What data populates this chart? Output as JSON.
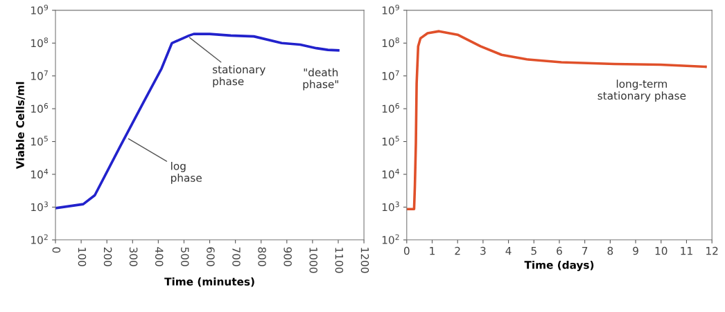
{
  "chart_data": [
    {
      "type": "line",
      "xlabel": "Time (minutes)",
      "ylabel": "Viable Cells/ml",
      "log": "y",
      "marker": "none",
      "line_style": "solid",
      "xlim": [
        0,
        1200
      ],
      "xticks": [
        0,
        100,
        200,
        300,
        400,
        500,
        600,
        700,
        800,
        900,
        1000,
        1100,
        1200
      ],
      "ylim": [
        100,
        1000000000
      ],
      "yticks": [
        {
          "value": 100,
          "label": "10$^{2}$"
        },
        {
          "value": 1000,
          "label": "10$^{3}$"
        },
        {
          "value": 10000,
          "label": "10$^{4}$"
        },
        {
          "value": 100000,
          "label": "10$^{5}$"
        },
        {
          "value": 1000000,
          "label": "10$^{6}$"
        },
        {
          "value": 10000000,
          "label": "10$^{7}$"
        },
        {
          "value": 100000000,
          "label": "10$^{8}$"
        },
        {
          "value": 1000000000,
          "label": "10$^{9}$"
        }
      ],
      "x": [
        0,
        108,
        153,
        251,
        341,
        413,
        453,
        520,
        538,
        600,
        682,
        772,
        880,
        952,
        1015,
        1060,
        1100
      ],
      "series": [
        {
          "color": "#2222cc",
          "values": [
            930,
            1230,
            2300,
            69000,
            1500000,
            17000000,
            100000000,
            170000000,
            190000000,
            190000000,
            170000000,
            160000000,
            100000000,
            90000000,
            70000000,
            62000000,
            60000000
          ]
        }
      ],
      "annotations": [
        {
          "text": "log\nphase",
          "x": 278,
          "y": 130000
        },
        {
          "text": "stationary\nphase",
          "x": 516,
          "y": 160000000
        },
        "\"death\nphase\""
      ]
    },
    {
      "type": "line",
      "xlabel": "Time (days)",
      "log": "y",
      "marker": "none",
      "line_style": "solid",
      "xlim": [
        0,
        12
      ],
      "xticks": [
        0,
        1,
        2,
        3,
        4,
        5,
        6,
        7,
        8,
        9,
        10,
        11,
        12
      ],
      "ylim": [
        100,
        1000000000
      ],
      "yticks": [
        {
          "value": 100,
          "label": "10$^{2}$"
        },
        {
          "value": 1000,
          "label": "10$^{3}$"
        },
        {
          "value": 10000,
          "label": "10$^{4}$"
        },
        {
          "value": 100000,
          "label": "10$^{5}$"
        },
        {
          "value": 1000000,
          "label": "10$^{6}$"
        },
        {
          "value": 10000000,
          "label": "10$^{7}$"
        },
        {
          "value": 100000000,
          "label": "10$^{8}$"
        },
        {
          "value": 1000000000,
          "label": "10$^{9}$"
        }
      ],
      "x": [
        0,
        0.29,
        0.32,
        0.36,
        0.39,
        0.45,
        0.54,
        0.82,
        1.27,
        2.0,
        2.9,
        3.73,
        4.72,
        6.08,
        8.17,
        9.98,
        11.75
      ],
      "series": [
        {
          "color": "#e0502a",
          "values": [
            870,
            870,
            4300,
            90000,
            6000000,
            80000000,
            140000000,
            200000000,
            230000000,
            180000000,
            80000000,
            44000000,
            32000000,
            26000000,
            23000000,
            22000000,
            19000000
          ]
        }
      ],
      "annotations": [
        "long-term\nstationary phase"
      ]
    }
  ]
}
